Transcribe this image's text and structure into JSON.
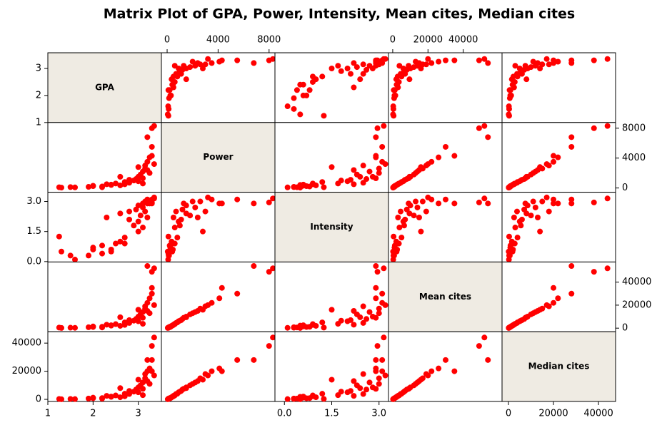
{
  "chart_data": {
    "type": "scatter-matrix",
    "title": "Matrix Plot of GPA, Power, Intensity, Mean cites, Median cites",
    "color": "#ff0000",
    "diagonal_color": "#efebe3",
    "variables": [
      {
        "name": "GPA",
        "values": [
          1.25,
          1.6,
          1.3,
          1.9,
          2.0,
          2.2,
          2.3,
          2.4,
          2.5,
          2.6,
          2.7,
          2.8,
          2.9,
          2.95,
          3.0,
          3.0,
          3.05,
          3.1,
          3.1,
          3.15,
          3.15,
          3.2,
          3.2,
          3.25,
          3.25,
          3.3,
          3.3,
          3.35,
          3.3,
          3.2,
          2.2,
          2.0,
          2.6,
          3.0,
          2.4,
          2.8,
          3.35,
          3.1,
          1.5,
          2.7
        ],
        "xlim": [
          1,
          3.51
        ],
        "ylim": [
          1,
          3.58
        ],
        "xticks": [
          1,
          2,
          3
        ],
        "yticks": [
          1,
          2,
          3
        ]
      },
      {
        "name": "Power",
        "values": [
          100,
          80,
          50,
          150,
          300,
          200,
          500,
          400,
          600,
          350,
          800,
          700,
          1000,
          1200,
          900,
          1500,
          1800,
          2200,
          1300,
          2600,
          3000,
          2400,
          3500,
          4100,
          2000,
          5500,
          4300,
          8300,
          8000,
          6800,
          100,
          250,
          1500,
          2800,
          450,
          1100,
          3200,
          600,
          120,
          500
        ],
        "xlim": [
          -450,
          8460
        ],
        "ylim": [
          -570,
          8760
        ],
        "xticks": [
          0,
          4000,
          8000
        ],
        "yticks": [
          0,
          4000,
          8000
        ]
      },
      {
        "name": "Intensity",
        "values": [
          1.25,
          0.1,
          0.5,
          0.3,
          0.6,
          0.8,
          2.2,
          0.5,
          0.9,
          1.0,
          1.2,
          2.5,
          1.8,
          2.6,
          2.0,
          2.8,
          2.3,
          2.7,
          2.9,
          3.0,
          2.5,
          2.2,
          3.1,
          2.9,
          3.0,
          3.1,
          2.9,
          3.15,
          2.95,
          2.9,
          0.4,
          0.7,
          2.4,
          1.5,
          0.6,
          2.1,
          3.2,
          1.7,
          0.3,
          0.9
        ],
        "xlim": [
          -0.3,
          3.3
        ],
        "ylim": [
          -0.02,
          3.46
        ],
        "xticks": [
          {
            "value": 0,
            "label": "0.0"
          },
          1.5,
          {
            "value": 3,
            "label": "3.0"
          }
        ],
        "yticks": [
          {
            "value": 0,
            "label": "0.0"
          },
          1.5,
          {
            "value": 3,
            "label": "3.0"
          }
        ]
      },
      {
        "name": "Mean cites",
        "values": [
          500,
          300,
          200,
          800,
          1500,
          1200,
          3000,
          2200,
          3500,
          2000,
          5000,
          4500,
          6500,
          8000,
          6000,
          10000,
          12000,
          14000,
          9000,
          17000,
          19000,
          15000,
          22000,
          26000,
          13000,
          30000,
          35000,
          52000,
          49000,
          54000,
          600,
          1000,
          9500,
          16000,
          2500,
          7000,
          20000,
          3800,
          400,
          2800
        ],
        "xlim": [
          -2400,
          62000
        ],
        "ylim": [
          -3100,
          57500
        ],
        "xticks": [
          0,
          20000,
          40000
        ],
        "yticks": [
          0,
          20000,
          40000
        ]
      },
      {
        "name": "Median cites",
        "values": [
          300,
          200,
          100,
          600,
          1200,
          900,
          2500,
          1800,
          2800,
          1500,
          4000,
          3800,
          5500,
          7000,
          5000,
          8500,
          10000,
          12000,
          7500,
          15000,
          18000,
          13000,
          20000,
          22000,
          11000,
          28000,
          20000,
          44000,
          38000,
          28000,
          500,
          800,
          8000,
          14000,
          2000,
          6000,
          17000,
          3000,
          300,
          2200
        ],
        "xlim": [
          -2860,
          47600
        ],
        "ylim": [
          -1500,
          48100
        ],
        "xticks": [
          0,
          20000,
          40000
        ],
        "yticks": [
          0,
          20000,
          40000
        ]
      }
    ]
  }
}
